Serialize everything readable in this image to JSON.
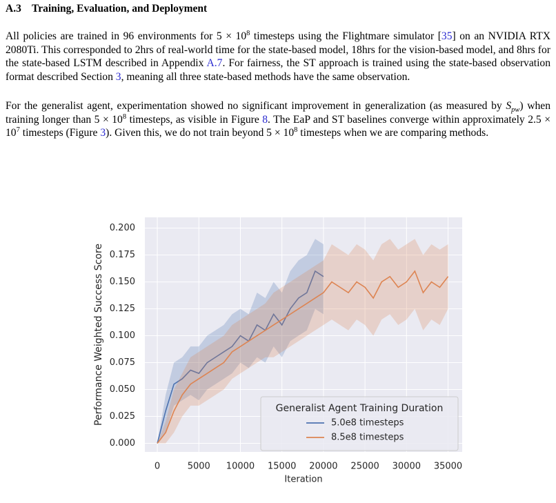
{
  "section": {
    "number": "A.3",
    "title": "Training, Evaluation, and Deployment"
  },
  "paragraphs": [
    [
      {
        "text": "All policies are trained in 96 environments for 5 × 10",
        "kind": "plain"
      },
      {
        "text": "8",
        "kind": "sup"
      },
      {
        "text": " timesteps using the Flightmare simulator [",
        "kind": "plain"
      },
      {
        "text": "35",
        "kind": "link"
      },
      {
        "text": "] on an NVIDIA RTX 2080Ti. This corresponded to 2hrs of real-world time for the state-based model, 18hrs for the vision-based model, and 8hrs for the state-based LSTM described in Appendix ",
        "kind": "plain"
      },
      {
        "text": "A.7",
        "kind": "link"
      },
      {
        "text": ". For fairness, the ST approach is trained using the state-based observation format described Section ",
        "kind": "plain"
      },
      {
        "text": "3",
        "kind": "link"
      },
      {
        "text": ", meaning all three state-based methods have the same observation.",
        "kind": "plain"
      }
    ],
    [
      {
        "text": "For the generalist agent, experimentation showed no significant improvement in generalization (as measured by ",
        "kind": "plain"
      },
      {
        "text": "S",
        "kind": "italic"
      },
      {
        "text": "pw",
        "kind": "sub"
      },
      {
        "text": ") when training longer than 5 × 10",
        "kind": "plain"
      },
      {
        "text": "8",
        "kind": "sup"
      },
      {
        "text": " timesteps, as visible in Figure ",
        "kind": "plain"
      },
      {
        "text": "8",
        "kind": "link"
      },
      {
        "text": ". The EaP and ST baselines converge within approximately 2.5 × 10",
        "kind": "plain"
      },
      {
        "text": "7",
        "kind": "sup"
      },
      {
        "text": " timesteps (Figure ",
        "kind": "plain"
      },
      {
        "text": "3",
        "kind": "link"
      },
      {
        "text": "). Given this, we do not train beyond 5 × 10",
        "kind": "plain"
      },
      {
        "text": "8",
        "kind": "sup"
      },
      {
        "text": " timesteps when we are comparing methods.",
        "kind": "plain"
      }
    ]
  ],
  "chart_data": {
    "type": "line",
    "xlabel": "Iteration",
    "ylabel": "Performance Weighted Success Score",
    "legend_title": "Generalist Agent Training Duration",
    "legend_position": "lower right",
    "grid": true,
    "xlim": [
      -1500,
      36700
    ],
    "ylim": [
      -0.008,
      0.21
    ],
    "xticks": [
      0,
      5000,
      10000,
      15000,
      20000,
      25000,
      30000,
      35000
    ],
    "yticks": [
      {
        "value": 0,
        "label": "0.000"
      },
      {
        "value": 0.025,
        "label": "0.025"
      },
      {
        "value": 0.05,
        "label": "0.050"
      },
      {
        "value": 0.075,
        "label": "0.075"
      },
      {
        "value": 0.1,
        "label": "0.100"
      },
      {
        "value": 0.125,
        "label": "0.125"
      },
      {
        "value": 0.15,
        "label": "0.150"
      },
      {
        "value": 0.175,
        "label": "0.175"
      },
      {
        "value": 0.2,
        "label": "0.200"
      }
    ],
    "series": [
      {
        "name": "5.0e8 timesteps",
        "color": "#4c72b0",
        "x": [
          0,
          1000,
          2000,
          3000,
          4000,
          5000,
          6000,
          7000,
          8000,
          9000,
          10000,
          11000,
          12000,
          13000,
          14000,
          15000,
          16000,
          17000,
          18000,
          19000,
          20000
        ],
        "values": [
          0,
          0.03,
          0.055,
          0.06,
          0.068,
          0.065,
          0.075,
          0.08,
          0.085,
          0.09,
          0.1,
          0.095,
          0.11,
          0.105,
          0.12,
          0.11,
          0.125,
          0.135,
          0.14,
          0.16,
          0.155
        ],
        "lower": [
          0,
          0.01,
          0.035,
          0.04,
          0.045,
          0.04,
          0.05,
          0.055,
          0.06,
          0.065,
          0.075,
          0.07,
          0.08,
          0.075,
          0.09,
          0.08,
          0.095,
          0.1,
          0.105,
          0.125,
          0.12
        ],
        "upper": [
          0,
          0.045,
          0.075,
          0.08,
          0.09,
          0.09,
          0.1,
          0.105,
          0.11,
          0.12,
          0.125,
          0.12,
          0.14,
          0.135,
          0.15,
          0.14,
          0.16,
          0.17,
          0.175,
          0.19,
          0.185
        ]
      },
      {
        "name": "8.5e8 timesteps",
        "color": "#dd8452",
        "x": [
          0,
          1000,
          2000,
          3000,
          4000,
          5000,
          6000,
          7000,
          8000,
          9000,
          10000,
          11000,
          12000,
          13000,
          14000,
          15000,
          16000,
          17000,
          18000,
          19000,
          20000,
          21000,
          22000,
          23000,
          24000,
          25000,
          26000,
          27000,
          28000,
          29000,
          30000,
          31000,
          32000,
          33000,
          34000,
          35000
        ],
        "values": [
          0,
          0.01,
          0.03,
          0.045,
          0.055,
          0.06,
          0.065,
          0.07,
          0.075,
          0.085,
          0.09,
          0.095,
          0.1,
          0.105,
          0.11,
          0.115,
          0.12,
          0.125,
          0.13,
          0.135,
          0.14,
          0.15,
          0.145,
          0.14,
          0.15,
          0.145,
          0.135,
          0.15,
          0.155,
          0.145,
          0.15,
          0.16,
          0.14,
          0.15,
          0.145,
          0.155
        ],
        "lower": [
          0,
          0,
          0.01,
          0.025,
          0.035,
          0.035,
          0.04,
          0.045,
          0.05,
          0.06,
          0.065,
          0.07,
          0.075,
          0.08,
          0.08,
          0.085,
          0.09,
          0.095,
          0.1,
          0.105,
          0.11,
          0.115,
          0.11,
          0.105,
          0.115,
          0.11,
          0.1,
          0.115,
          0.12,
          0.11,
          0.115,
          0.125,
          0.105,
          0.115,
          0.11,
          0.125
        ],
        "upper": [
          0,
          0.02,
          0.05,
          0.065,
          0.08,
          0.085,
          0.09,
          0.095,
          0.1,
          0.11,
          0.115,
          0.12,
          0.125,
          0.13,
          0.14,
          0.145,
          0.15,
          0.155,
          0.16,
          0.165,
          0.17,
          0.185,
          0.18,
          0.175,
          0.185,
          0.18,
          0.17,
          0.185,
          0.19,
          0.18,
          0.185,
          0.19,
          0.175,
          0.185,
          0.18,
          0.185
        ]
      }
    ]
  }
}
